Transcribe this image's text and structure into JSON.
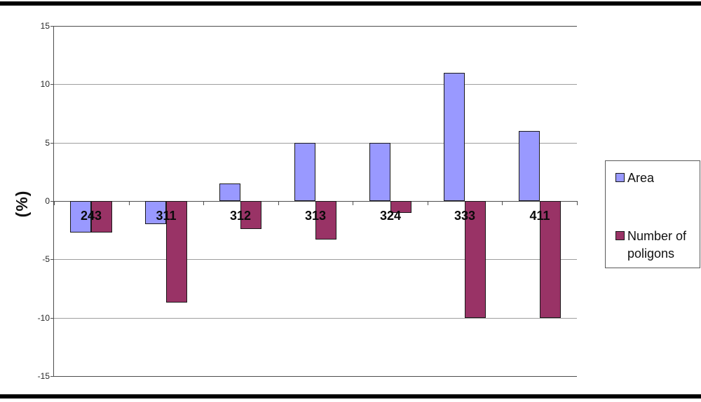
{
  "page": {
    "background": "#ffffff",
    "top_border_color": "#000000",
    "bottom_border_color": "#000000"
  },
  "chart_data": {
    "type": "bar",
    "title": "",
    "ylabel": "(%)",
    "categories": [
      "243",
      "311",
      "312",
      "313",
      "324",
      "333",
      "411"
    ],
    "series": [
      {
        "name": "Area",
        "color": "#9999FF",
        "values": [
          -2.7,
          -2.0,
          1.5,
          5.0,
          5.0,
          11.0,
          6.0
        ]
      },
      {
        "name": "Number of poligons",
        "color": "#993366",
        "values": [
          -2.7,
          -8.7,
          -2.4,
          -3.3,
          -1.0,
          -10.0,
          -10.0
        ]
      }
    ],
    "ylim": [
      -15,
      15
    ],
    "yticks": [
      15,
      10,
      5,
      0,
      -5,
      -10,
      -15
    ],
    "grid": true,
    "legend_position": "right",
    "gridline_color": "#9e9e9e",
    "axis_color": "#4d4d4d",
    "bar_border_color": "#1a1a1a"
  }
}
